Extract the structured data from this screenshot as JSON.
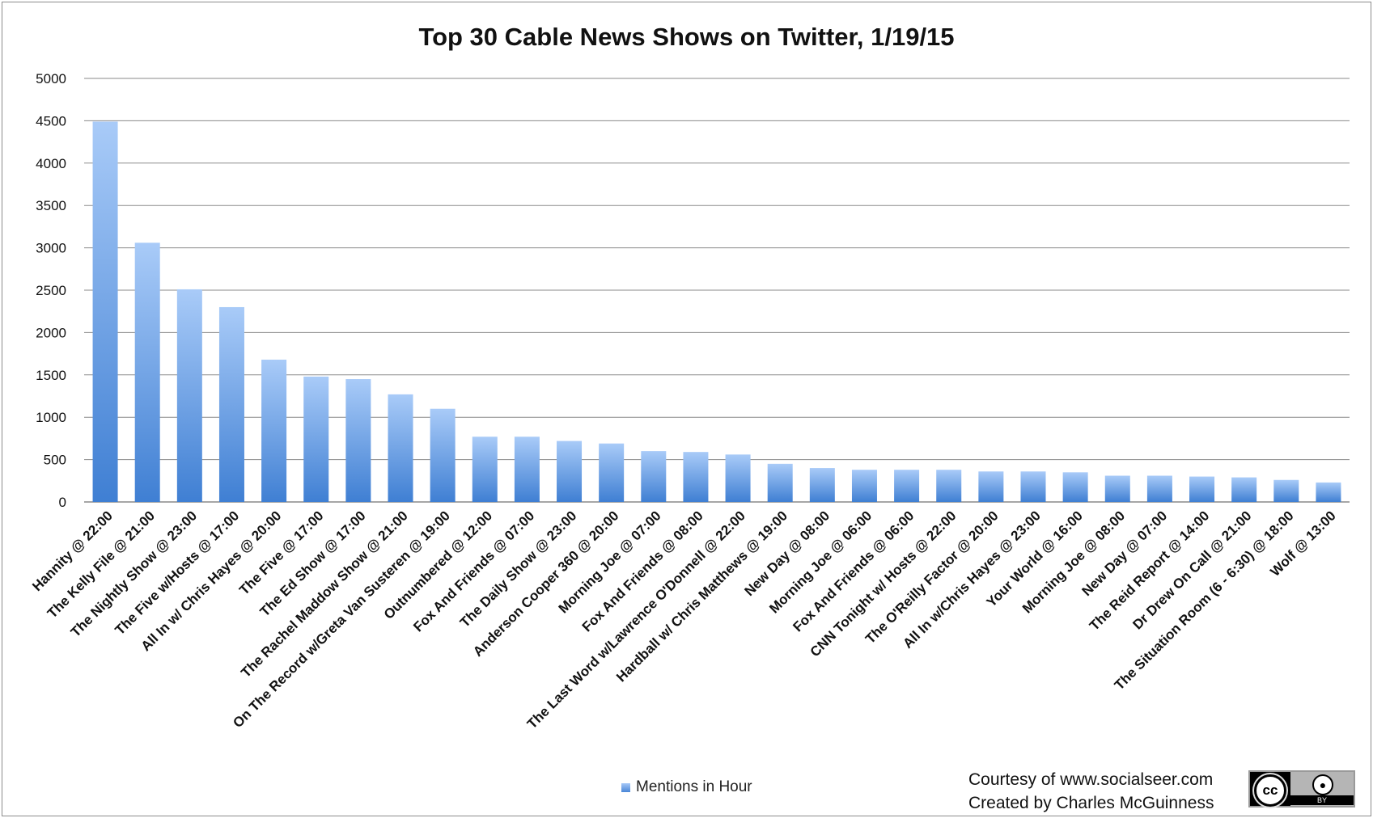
{
  "chart_data": {
    "type": "bar",
    "title": "Top 30 Cable News Shows on Twitter, 1/19/15",
    "xlabel": "",
    "ylabel": "",
    "ylim": [
      0,
      5000
    ],
    "yticks": [
      0,
      500,
      1000,
      1500,
      2000,
      2500,
      3000,
      3500,
      4000,
      4500,
      5000
    ],
    "grid": true,
    "legend_position": "bottom",
    "categories": [
      "Hannity @ 22:00",
      "The Kelly File @ 21:00",
      "The Nightly Show @ 23:00",
      "The Five w/Hosts @ 17:00",
      "All In w/ Chris Hayes @ 20:00",
      "The Five @ 17:00",
      "The Ed Show @ 17:00",
      "The Rachel Maddow Show @ 21:00",
      "On The Record w/Greta Van Susteren @ 19:00",
      "Outnumbered @ 12:00",
      "Fox And Friends @ 07:00",
      "The Daily Show @ 23:00",
      "Anderson Cooper 360 @ 20:00",
      "Morning Joe @ 07:00",
      "Fox And Friends @ 08:00",
      "The Last Word w/Lawrence O'Donnell @ 22:00",
      "Hardball w/ Chris Matthews @ 19:00",
      "New Day @ 08:00",
      "Morning Joe @ 06:00",
      "Fox And Friends @ 06:00",
      "CNN Tonight w/ Hosts @ 22:00",
      "The O'Reilly Factor @ 20:00",
      "All In w/Chris Hayes @ 23:00",
      "Your World @ 16:00",
      "Morning Joe @ 08:00",
      "New Day @ 07:00",
      "The Reid Report @ 14:00",
      "Dr Drew On Call @ 21:00",
      "The Situation Room (6 - 6:30) @ 18:00",
      "Wolf @ 13:00"
    ],
    "series": [
      {
        "name": "Mentions in Hour",
        "values": [
          4490,
          3060,
          2510,
          2300,
          1680,
          1480,
          1450,
          1270,
          1100,
          770,
          770,
          720,
          690,
          600,
          590,
          560,
          450,
          400,
          380,
          380,
          380,
          360,
          360,
          350,
          310,
          310,
          300,
          290,
          260,
          230
        ]
      }
    ]
  },
  "credits": {
    "line1": "Courtesy of www.socialseer.com",
    "line2": "Created by Charles McGuinness"
  },
  "license_badge": {
    "cc_text": "cc",
    "by_text": "BY",
    "icon": "creative-commons-by-icon"
  },
  "colors": {
    "bar_top": "#a9cbf8",
    "bar_bottom": "#3f7fd3",
    "grid": "#8a8a8a"
  }
}
